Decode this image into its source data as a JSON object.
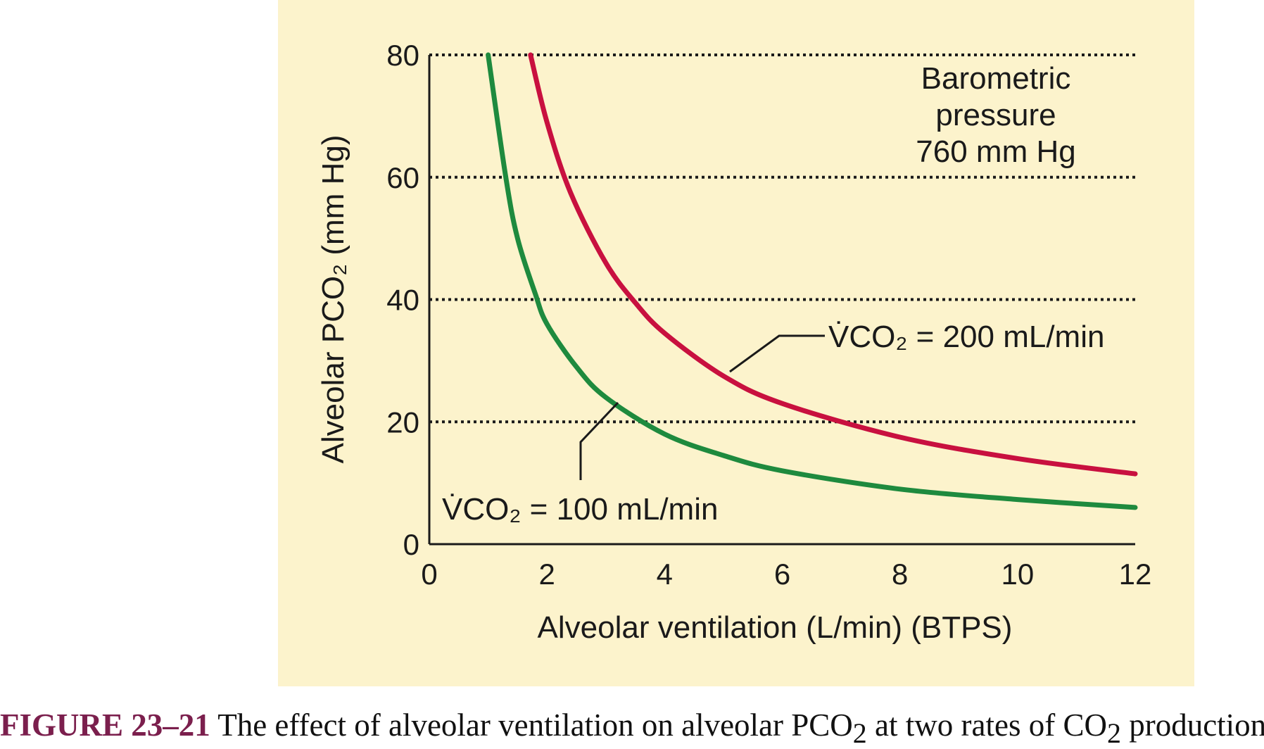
{
  "chart_data": {
    "type": "line",
    "xlabel": "Alveolar ventilation (L/min) (BTPS)",
    "ylabel": "Alveolar PCO₂ (mm Hg)",
    "xlim": [
      0,
      12
    ],
    "ylim": [
      0,
      80
    ],
    "x_ticks": [
      "0",
      "2",
      "4",
      "6",
      "8",
      "10",
      "12"
    ],
    "y_ticks": [
      "0",
      "20",
      "40",
      "60",
      "80"
    ],
    "grid": "horizontal dotted at 20, 40, 60, 80",
    "series": [
      {
        "name": "V̇CO₂ = 200 mL/min",
        "color": "#c8103f",
        "x": [
          1.72,
          2,
          2.4,
          3,
          3.5,
          4,
          5,
          6,
          8,
          10,
          12
        ],
        "y": [
          80,
          69,
          57.5,
          46,
          39.5,
          34.5,
          27.5,
          23,
          17.5,
          14,
          11.5
        ]
      },
      {
        "name": "V̇CO₂ = 100 mL/min",
        "color": "#1e8a3e",
        "x": [
          1.0,
          1.3,
          1.5,
          1.8,
          2,
          2.5,
          3,
          4,
          5,
          6,
          8,
          10,
          12
        ],
        "y": [
          80,
          60,
          50,
          41,
          36,
          29,
          24,
          18,
          14.5,
          12,
          9,
          7.3,
          6
        ]
      }
    ],
    "annotations": {
      "pressure_line1": "Barometric",
      "pressure_line2": "pressure",
      "pressure_line3": "760 mm Hg"
    }
  },
  "caption": {
    "figure_label": "FIGURE 23–21",
    "text_before": " The effect of alveolar ventilation on alveolar PCO",
    "sub1": "2",
    "text_middle": " at two rates of CO",
    "sub2": "2",
    "text_after": " production."
  }
}
